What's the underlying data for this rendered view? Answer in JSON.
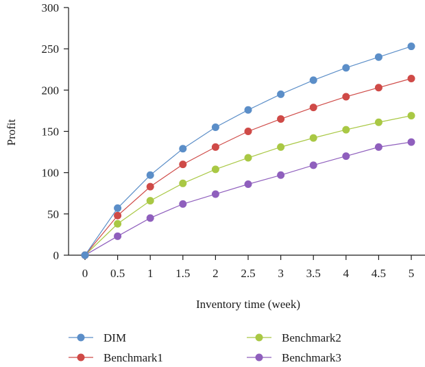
{
  "chart_data": {
    "type": "line",
    "title": "",
    "xlabel": "Inventory time (week)",
    "ylabel": "Profit",
    "x": [
      0,
      0.5,
      1,
      1.5,
      2,
      2.5,
      3,
      3.5,
      4,
      4.5,
      5
    ],
    "x_tick_labels": [
      "0",
      "0.5",
      "1",
      "1.5",
      "2",
      "2.5",
      "3",
      "3.5",
      "4",
      "4.5",
      "5"
    ],
    "y_ticks": [
      0,
      50,
      100,
      150,
      200,
      250,
      300
    ],
    "y_tick_labels": [
      "0",
      "50",
      "100",
      "150",
      "200",
      "250",
      "300"
    ],
    "ylim": [
      0,
      300
    ],
    "grid": false,
    "legend_position": "bottom",
    "series": [
      {
        "name": "DIM",
        "color": "#5b8ec8",
        "values": [
          0,
          57,
          97,
          129,
          155,
          176,
          195,
          212,
          227,
          240,
          253
        ]
      },
      {
        "name": "Benchmark1",
        "color": "#cf4a47",
        "values": [
          0,
          48,
          83,
          110,
          131,
          150,
          165,
          179,
          192,
          203,
          214
        ]
      },
      {
        "name": "Benchmark2",
        "color": "#a9c844",
        "values": [
          0,
          38,
          66,
          87,
          104,
          118,
          131,
          142,
          152,
          161,
          169
        ]
      },
      {
        "name": "Benchmark3",
        "color": "#8f5fbd",
        "values": [
          0,
          23,
          45,
          62,
          74,
          86,
          97,
          109,
          120,
          131,
          137
        ]
      }
    ]
  }
}
